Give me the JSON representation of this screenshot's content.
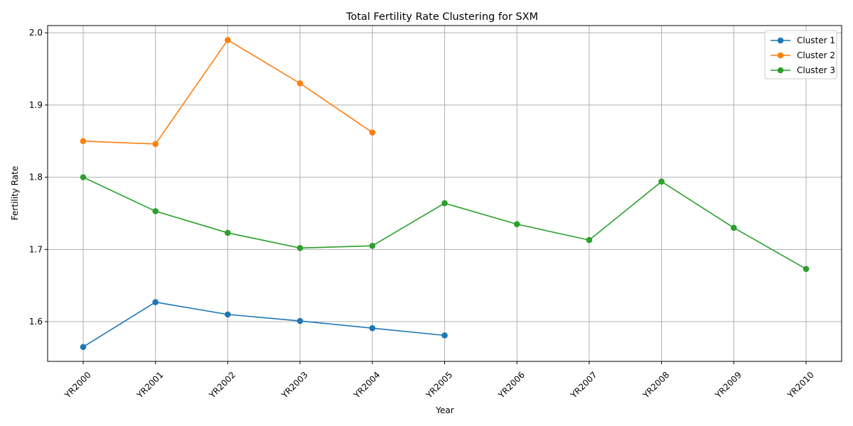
{
  "chart_data": {
    "type": "line",
    "title": "Total Fertility Rate Clustering for SXM",
    "xlabel": "Year",
    "ylabel": "Fertility Rate",
    "categories": [
      "YR2000",
      "YR2001",
      "YR2002",
      "YR2003",
      "YR2004",
      "YR2005",
      "YR2006",
      "YR2007",
      "YR2008",
      "YR2009",
      "YR2010"
    ],
    "ylim": [
      1.545,
      2.01
    ],
    "yticks": [
      "1.6",
      "1.7",
      "1.8",
      "1.9",
      "2.0"
    ],
    "grid": true,
    "legend_position": "top-right",
    "marker": "circle",
    "series": [
      {
        "name": "Cluster 1",
        "color": "#1f77b4",
        "values": [
          1.565,
          1.627,
          1.61,
          1.601,
          1.591,
          1.581,
          null,
          null,
          null,
          null,
          null
        ]
      },
      {
        "name": "Cluster 2",
        "color": "#ff7f0e",
        "values": [
          1.85,
          1.846,
          1.99,
          1.93,
          1.862,
          null,
          null,
          null,
          null,
          null,
          null
        ]
      },
      {
        "name": "Cluster 3",
        "color": "#2ca02c",
        "values": [
          1.8,
          1.753,
          1.723,
          1.702,
          1.705,
          1.764,
          1.735,
          1.713,
          1.794,
          1.73,
          1.673
        ]
      }
    ]
  }
}
